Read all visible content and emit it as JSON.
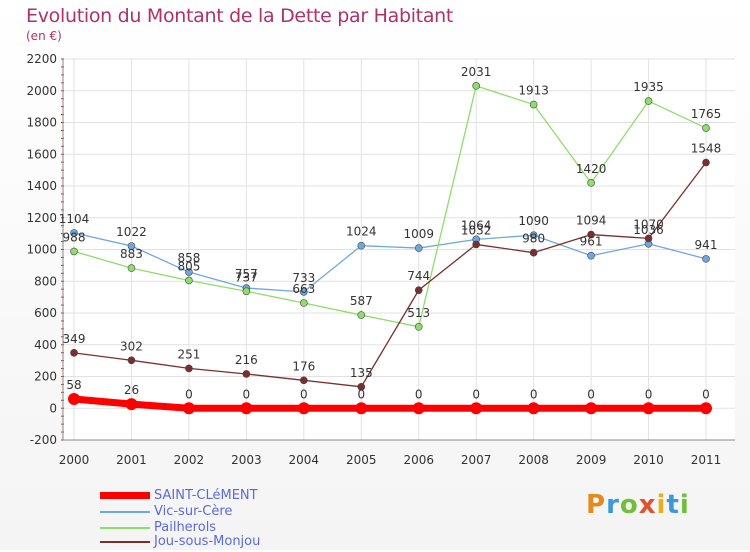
{
  "title": "Evolution du Montant de la Dette par Habitant",
  "subtitle": "(en €)",
  "logo_text": "Proxiti",
  "chart_data": {
    "type": "line",
    "x": [
      2000,
      2001,
      2002,
      2003,
      2004,
      2005,
      2006,
      2007,
      2008,
      2009,
      2010,
      2011
    ],
    "ylim": [
      -200,
      2200
    ],
    "yticks": [
      -200,
      0,
      200,
      400,
      600,
      800,
      1000,
      1200,
      1400,
      1600,
      1800,
      2000,
      2200
    ],
    "grid": true,
    "legend": "bottom-left",
    "series": [
      {
        "name": "SAINT-CLéMENT",
        "color": "#ff0000",
        "values": [
          58,
          26,
          0,
          0,
          0,
          0,
          0,
          0,
          0,
          0,
          0,
          0
        ],
        "labels": [
          "58",
          "26",
          "0",
          "0",
          "0",
          "0",
          "0",
          "0",
          "0",
          "0",
          "0",
          "0"
        ]
      },
      {
        "name": "Vic-sur-Cère",
        "color": "#6fa8dc",
        "values": [
          1104,
          1022,
          858,
          757,
          733,
          1024,
          1009,
          1064,
          1090,
          961,
          1036,
          941
        ],
        "labels": [
          "1104",
          "1022",
          "858",
          "757",
          "733",
          "1024",
          "1009",
          "1064",
          "1090",
          "961",
          "1036",
          "941"
        ]
      },
      {
        "name": "Pailherols",
        "color": "#8fdd6a",
        "values": [
          988,
          883,
          805,
          737,
          663,
          587,
          513,
          2031,
          1913,
          1420,
          1935,
          1765
        ],
        "labels": [
          "988",
          "883",
          "805",
          "737",
          "663",
          "587",
          "513",
          "2031",
          "1913",
          "1420",
          "1935",
          "1765"
        ]
      },
      {
        "name": "Jou-sous-Monjou",
        "color": "#7a2e2e",
        "values": [
          349,
          302,
          251,
          216,
          176,
          135,
          744,
          1032,
          980,
          1094,
          1070,
          1548
        ],
        "labels": [
          "349",
          "302",
          "251",
          "216",
          "176",
          "135",
          "744",
          "1032",
          "980",
          "1094",
          "1070",
          "1548"
        ]
      }
    ]
  }
}
